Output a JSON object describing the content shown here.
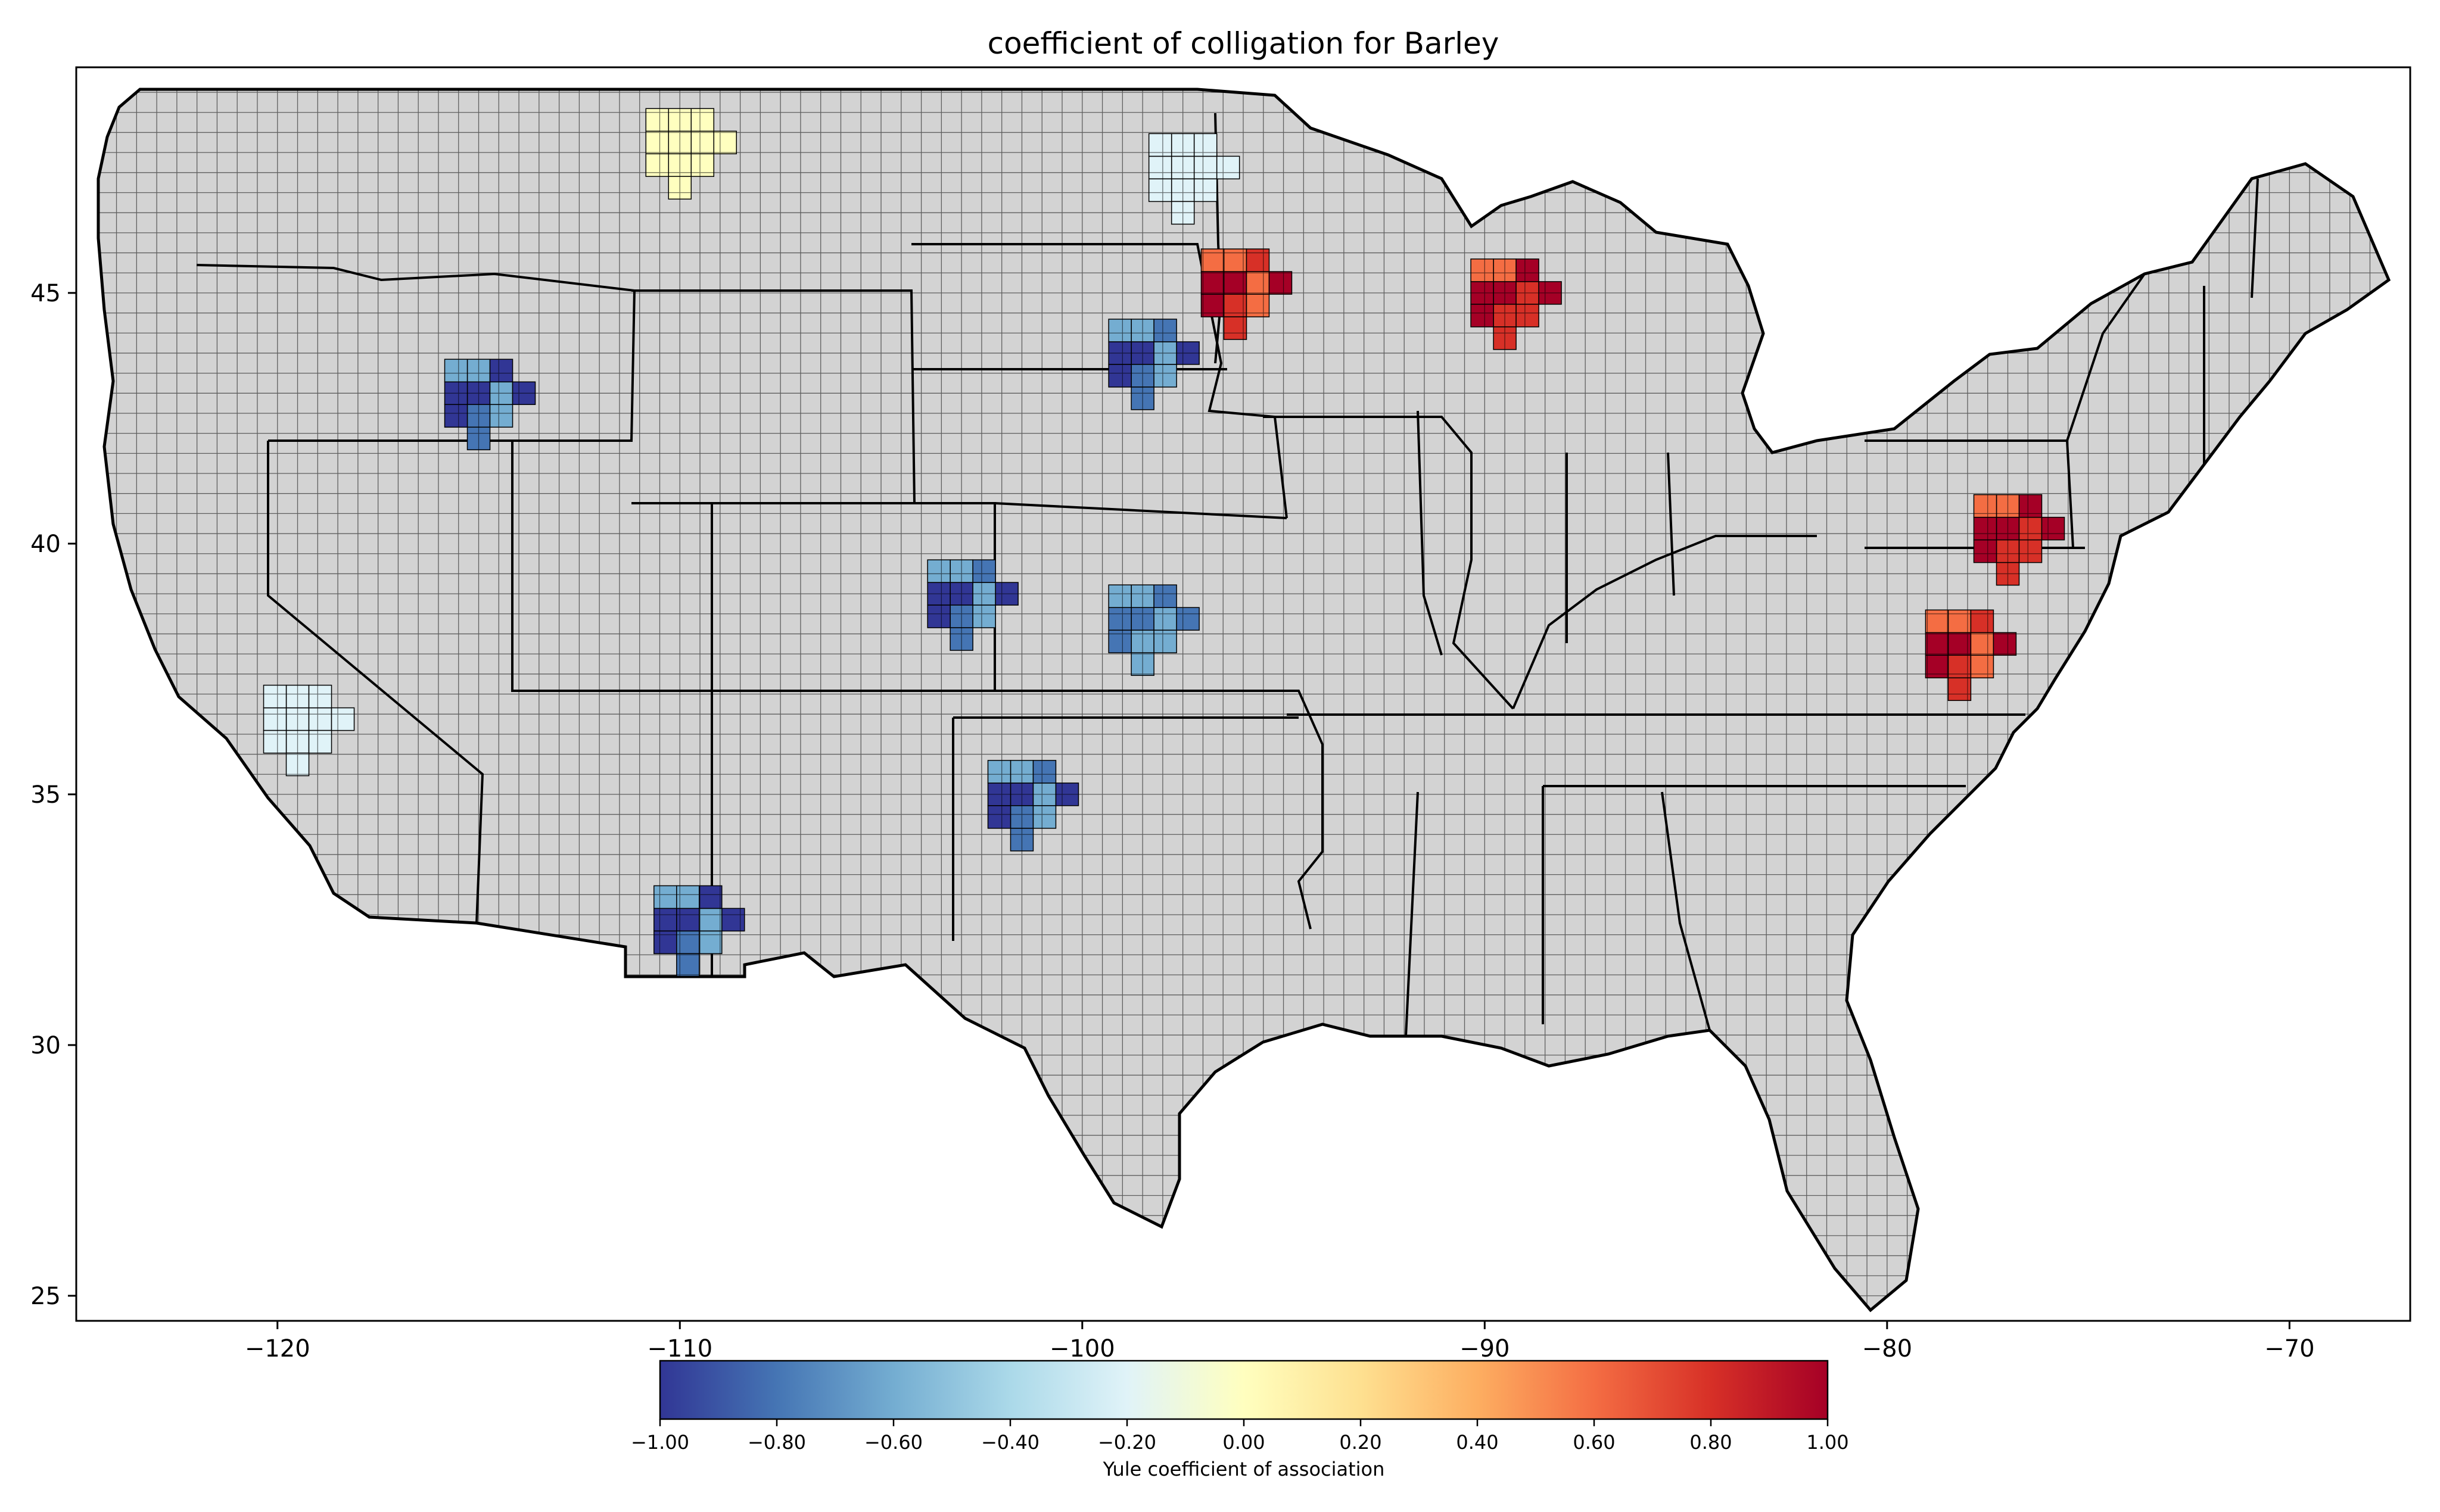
{
  "title": "coefficient of colligation for Barley",
  "map": {
    "lon_range": [
      -125,
      -67
    ],
    "lat_range": [
      24.5,
      49.5
    ],
    "x_ticks": [
      -120,
      -110,
      -100,
      -90,
      -80,
      -70
    ],
    "y_ticks": [
      25,
      30,
      35,
      40,
      45
    ],
    "x_tick_labels": [
      "−120",
      "−110",
      "−100",
      "−90",
      "−80",
      "−70"
    ],
    "y_tick_labels": [
      "25",
      "30",
      "35",
      "40",
      "45"
    ],
    "background_fill": "#d3d3d3",
    "no_data_color": "#d3d3d3",
    "regions": [
      {
        "name": "north-dakota-east",
        "lon": -97.5,
        "lat": 47.5,
        "value": -0.3
      },
      {
        "name": "minnesota-west",
        "lon": -96.2,
        "lat": 45.2,
        "value": 0.9
      },
      {
        "name": "south-dakota-east",
        "lon": -98.5,
        "lat": 43.8,
        "value": -0.9
      },
      {
        "name": "wisconsin-central",
        "lon": -89.5,
        "lat": 45.0,
        "value": 1.0
      },
      {
        "name": "pennsylvania-south",
        "lon": -77.0,
        "lat": 40.3,
        "value": 1.0
      },
      {
        "name": "virginia-central",
        "lon": -78.2,
        "lat": 38.0,
        "value": 0.95
      },
      {
        "name": "kansas-central",
        "lon": -98.5,
        "lat": 38.5,
        "value": -0.85
      },
      {
        "name": "colorado-east",
        "lon": -103.0,
        "lat": 39.0,
        "value": -0.9
      },
      {
        "name": "montana-north",
        "lon": -110.0,
        "lat": 48.0,
        "value": 0.05
      },
      {
        "name": "idaho-south",
        "lon": -115.0,
        "lat": 43.0,
        "value": -1.0
      },
      {
        "name": "texas-panhandle",
        "lon": -101.5,
        "lat": 35.0,
        "value": -0.9
      },
      {
        "name": "arizona-southeast",
        "lon": -109.8,
        "lat": 32.5,
        "value": -1.0
      },
      {
        "name": "california-central",
        "lon": -119.5,
        "lat": 36.5,
        "value": -0.3
      }
    ]
  },
  "colorbar": {
    "label": "Yule coefficient of association",
    "min": -1.0,
    "max": 1.0,
    "tick_labels": [
      "−1.00",
      "−0.80",
      "−0.60",
      "−0.40",
      "−0.20",
      "0.00",
      "0.20",
      "0.40",
      "0.60",
      "0.80",
      "1.00"
    ],
    "colormap": "RdYlBu_r",
    "stops": [
      "#313695",
      "#4575b4",
      "#74add1",
      "#abd9e9",
      "#e0f3f8",
      "#ffffbf",
      "#fee090",
      "#fdae61",
      "#f46d43",
      "#d73027",
      "#a50026"
    ]
  }
}
